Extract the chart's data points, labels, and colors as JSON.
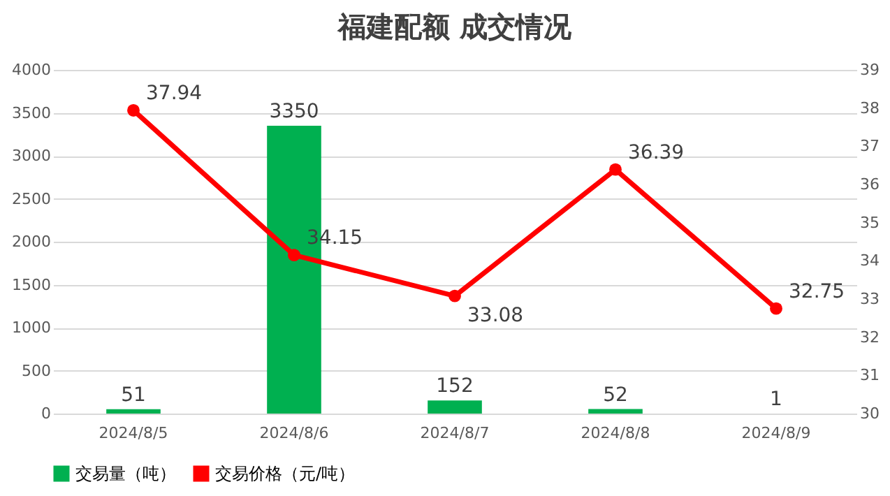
{
  "chart_data": {
    "type": "bar",
    "title": "福建配额 成交情况",
    "categories": [
      "2024/8/5",
      "2024/8/6",
      "2024/8/7",
      "2024/8/8",
      "2024/8/9"
    ],
    "series": [
      {
        "name": "交易量（吨）",
        "color": "#00b050",
        "values": [
          51,
          3350,
          152,
          52,
          1
        ]
      },
      {
        "name": "交易价格（元/吨）",
        "color": "#ff0000",
        "type": "line",
        "axis": "y2",
        "values": [
          37.94,
          34.15,
          33.08,
          36.39,
          32.75
        ]
      }
    ],
    "ylim": [
      0,
      4000
    ],
    "yticks": [
      0,
      500,
      1000,
      1500,
      2000,
      2500,
      3000,
      3500,
      4000
    ],
    "y2lim": [
      30,
      39
    ],
    "y2ticks": [
      30,
      31,
      32,
      33,
      34,
      35,
      36,
      37,
      38,
      39
    ],
    "grid": "y",
    "legend": "bottom",
    "marker": "circle",
    "data_labels": true
  }
}
